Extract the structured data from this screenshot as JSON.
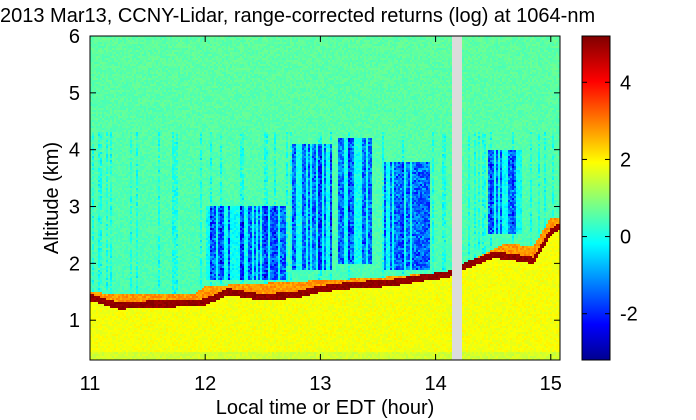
{
  "chart_data": {
    "type": "heatmap",
    "title": "2013 Mar13, CCNY-Lidar, range-corrected returns (log) at 1064-nm",
    "xlabel": "Local time or EDT (hour)",
    "ylabel": "Altitude (km)",
    "xlim": [
      11.0,
      15.08
    ],
    "ylim": [
      0.3,
      6.0
    ],
    "xticks": [
      "11",
      "12",
      "13",
      "14",
      "15"
    ],
    "yticks": [
      "1",
      "2",
      "3",
      "4",
      "5",
      "6"
    ],
    "colorbar": {
      "ticks": [
        "-2",
        "0",
        "2",
        "4"
      ],
      "range": [
        -3.2,
        5.2
      ],
      "colormap": "jet"
    },
    "data_gap": [
      14.15,
      14.23
    ],
    "values_note": "",
    "layer_top_km": [
      [
        11.0,
        1.4
      ],
      [
        11.25,
        1.25
      ],
      [
        11.5,
        1.28
      ],
      [
        11.9,
        1.3
      ],
      [
        12.0,
        1.32
      ],
      [
        12.2,
        1.5
      ],
      [
        12.5,
        1.4
      ],
      [
        12.8,
        1.45
      ],
      [
        13.0,
        1.55
      ],
      [
        13.3,
        1.62
      ],
      [
        13.6,
        1.65
      ],
      [
        13.9,
        1.75
      ],
      [
        14.1,
        1.8
      ],
      [
        14.25,
        1.95
      ],
      [
        14.5,
        2.15
      ],
      [
        14.7,
        2.1
      ],
      [
        14.85,
        2.05
      ],
      [
        15.0,
        2.55
      ],
      [
        15.08,
        2.65
      ]
    ],
    "aerosol_top_km": [
      [
        11.0,
        1.5
      ],
      [
        11.25,
        1.45
      ],
      [
        11.9,
        1.45
      ],
      [
        12.0,
        1.6
      ],
      [
        12.5,
        1.65
      ],
      [
        13.0,
        1.7
      ],
      [
        13.5,
        1.75
      ],
      [
        14.1,
        1.85
      ],
      [
        14.25,
        2.0
      ],
      [
        14.6,
        2.35
      ],
      [
        14.85,
        2.3
      ],
      [
        15.0,
        2.8
      ],
      [
        15.08,
        2.8
      ]
    ],
    "low_signal_regions": [
      {
        "x": [
          12.75,
          13.1
        ],
        "alt": [
          1.9,
          4.1
        ]
      },
      {
        "x": [
          13.15,
          13.45
        ],
        "alt": [
          2.0,
          4.2
        ]
      },
      {
        "x": [
          13.55,
          13.95
        ],
        "alt": [
          1.9,
          3.8
        ]
      },
      {
        "x": [
          14.45,
          14.75
        ],
        "alt": [
          2.5,
          4.0
        ]
      },
      {
        "x": [
          12.0,
          12.7
        ],
        "alt": [
          1.7,
          3.0
        ]
      }
    ]
  }
}
